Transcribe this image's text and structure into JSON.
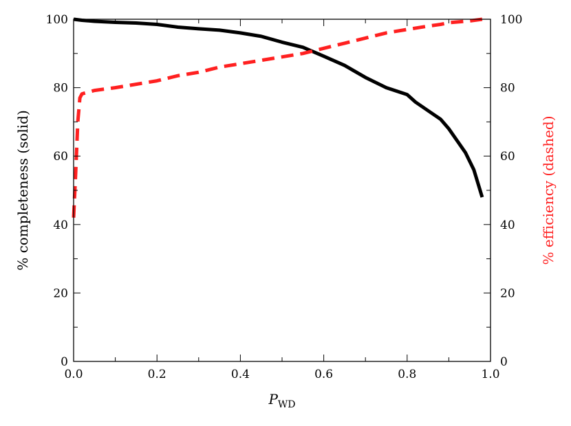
{
  "chart_data": {
    "type": "line",
    "title": "",
    "xlabel": {
      "main": "P",
      "sub": "WD"
    },
    "ylabel_left": "% completeness (solid)",
    "ylabel_right": "% efficiency (dashed)",
    "xlim": [
      0.0,
      1.0
    ],
    "ylim_left": [
      0,
      100
    ],
    "ylim_right": [
      0,
      100
    ],
    "xticks": [
      "0.0",
      "0.2",
      "0.4",
      "0.6",
      "0.8",
      "1.0"
    ],
    "yticks_left": [
      "0",
      "20",
      "40",
      "60",
      "80",
      "100"
    ],
    "yticks_right": [
      "0",
      "20",
      "40",
      "60",
      "80",
      "100"
    ],
    "grid": false,
    "series": [
      {
        "axis": "left",
        "style": "solid",
        "color": "#000000",
        "x": [
          0.0,
          0.02,
          0.05,
          0.1,
          0.15,
          0.2,
          0.25,
          0.3,
          0.35,
          0.4,
          0.45,
          0.5,
          0.55,
          0.6,
          0.65,
          0.7,
          0.75,
          0.8,
          0.82,
          0.85,
          0.88,
          0.9,
          0.92,
          0.94,
          0.96,
          0.98
        ],
        "values": [
          100,
          99.7,
          99.4,
          99.1,
          98.9,
          98.5,
          97.7,
          97.2,
          96.8,
          96.0,
          95.0,
          93.3,
          91.8,
          89.2,
          86.5,
          83.0,
          80.0,
          78.0,
          75.8,
          73.3,
          70.8,
          68.0,
          64.5,
          61.0,
          56.0,
          48.0
        ]
      },
      {
        "axis": "right",
        "style": "dashed",
        "color": "#ff2020",
        "x": [
          0.0,
          0.005,
          0.01,
          0.015,
          0.02,
          0.05,
          0.1,
          0.15,
          0.2,
          0.25,
          0.3,
          0.35,
          0.4,
          0.45,
          0.5,
          0.55,
          0.6,
          0.65,
          0.7,
          0.75,
          0.8,
          0.85,
          0.88,
          0.9,
          0.95,
          0.98
        ],
        "values": [
          42,
          55,
          70,
          77,
          78.2,
          79.2,
          80.0,
          81.0,
          82.0,
          83.5,
          84.5,
          86.0,
          87.0,
          88.0,
          89.0,
          90.0,
          91.5,
          93.0,
          94.5,
          96.0,
          97.0,
          98.0,
          98.5,
          99.0,
          99.5,
          100.0
        ]
      }
    ]
  }
}
